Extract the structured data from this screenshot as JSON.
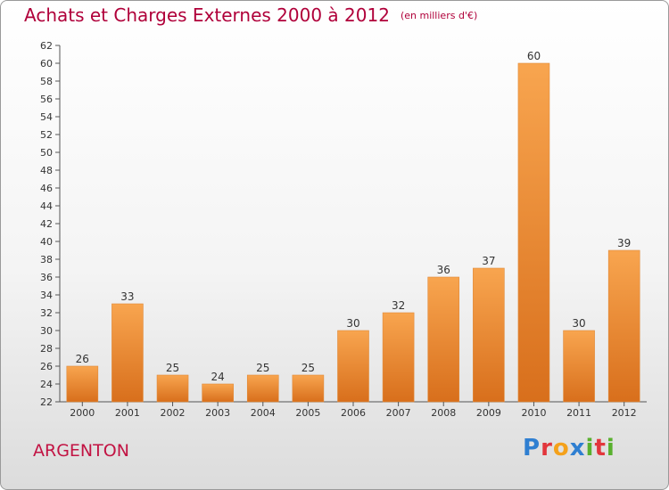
{
  "chart_data": {
    "type": "bar",
    "title": "Achats et Charges Externes 2000 à 2012",
    "subtitle": "(en milliers d'€)",
    "categories": [
      "2000",
      "2001",
      "2002",
      "2003",
      "2004",
      "2005",
      "2006",
      "2007",
      "2008",
      "2009",
      "2010",
      "2011",
      "2012"
    ],
    "values": [
      26,
      33,
      25,
      24,
      25,
      25,
      30,
      32,
      36,
      37,
      60,
      30,
      39
    ],
    "ylim": [
      22,
      62
    ],
    "yticks": [
      22,
      24,
      26,
      28,
      30,
      32,
      34,
      36,
      38,
      40,
      42,
      44,
      46,
      48,
      50,
      52,
      54,
      56,
      58,
      60,
      62
    ],
    "grid": false,
    "bar_color_top": "#f8a54f",
    "bar_color_bottom": "#d86f1c"
  },
  "commune": "ARGENTON",
  "logo": {
    "text": "Proxiti",
    "colors": [
      "#2f7fd1",
      "#e2363c",
      "#f4a11b",
      "#2f7fd1",
      "#59b02e",
      "#e2363c",
      "#59b02e"
    ]
  },
  "colors": {
    "title": "#b0003a",
    "commune": "#c21343"
  }
}
